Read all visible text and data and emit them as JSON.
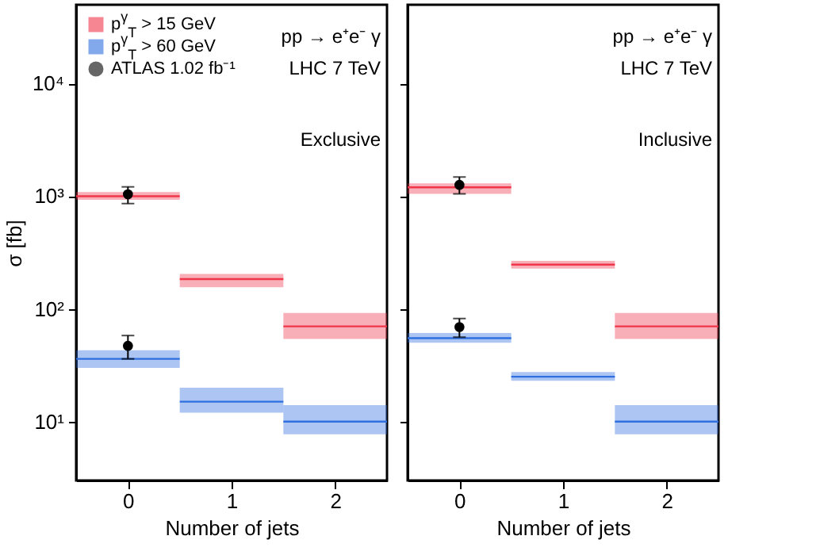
{
  "chart_data": [
    {
      "type": "line",
      "xlabel": "Number of jets",
      "ylabel": "σ [fb]",
      "xlim": [
        -0.5,
        2.5
      ],
      "xticks": [
        0,
        1,
        2
      ],
      "ylim": [
        3,
        50000
      ],
      "yticks": [
        {
          "value": 10,
          "label": "10¹"
        },
        {
          "value": 100,
          "label": "10²"
        },
        {
          "value": 1000,
          "label": "10³"
        },
        {
          "value": 10000,
          "label": "10⁴"
        }
      ],
      "log": "y",
      "legend": "top left",
      "annotations": [
        "pp → e⁺e⁻ γ",
        "LHC 7 TeV",
        "Exclusive"
      ],
      "series": [
        {
          "name": "p$^{γ}$$_{T}$ > 15 GeV",
          "color": "#f0364a",
          "x": [
            -0.5,
            0.5
          ],
          "values": [
            1000,
            1000
          ],
          "lower": [
            930,
            930
          ],
          "upper": [
            1090,
            1090
          ]
        },
        {
          "color": "#f0364a",
          "x": [
            0.5,
            1.5
          ],
          "values": [
            184,
            184
          ],
          "lower": [
            156,
            156
          ],
          "upper": [
            204,
            204
          ]
        },
        {
          "color": "#f0364a",
          "x": [
            1.5,
            2.5
          ],
          "values": [
            70,
            70
          ],
          "lower": [
            54,
            54
          ],
          "upper": [
            92,
            92
          ]
        },
        {
          "name": "p$^{γ}$$_{T}$ > 60 GeV",
          "color": "#2f6fe0",
          "x": [
            -0.5,
            0.5
          ],
          "values": [
            36,
            36
          ],
          "lower": [
            30,
            30
          ],
          "upper": [
            43,
            43
          ]
        },
        {
          "color": "#2f6fe0",
          "x": [
            0.5,
            1.5
          ],
          "values": [
            15,
            15
          ],
          "lower": [
            12,
            12
          ],
          "upper": [
            20,
            20
          ]
        },
        {
          "color": "#2f6fe0",
          "x": [
            1.5,
            2.5
          ],
          "values": [
            10,
            10
          ],
          "lower": [
            7.7,
            7.7
          ],
          "upper": [
            14,
            14
          ]
        },
        {
          "name": "ATLAS 1.02 fb⁻¹",
          "type": "scatter",
          "marker": "circle",
          "color": "#000000",
          "x": [
            0,
            0
          ],
          "values": [
            1040,
            47
          ],
          "errors": [
            [
              860,
              1210
            ],
            [
              36,
              58
            ]
          ]
        }
      ]
    },
    {
      "type": "line",
      "xlabel": "Number of jets",
      "xlim": [
        -0.5,
        2.5
      ],
      "xticks": [
        0,
        1,
        2
      ],
      "ylim": [
        3,
        50000
      ],
      "yticks": [
        10,
        100,
        1000,
        10000
      ],
      "log": "y",
      "tick_labels": "x",
      "legend": "top left",
      "annotations": [
        "pp → e⁺e⁻ γ",
        "LHC 7 TeV",
        "Inclusive"
      ],
      "series": [
        {
          "name": "p$^{γ}$$_{T}$ > 15 GeV",
          "color": "#f0364a",
          "x": [
            -0.5,
            0.5
          ],
          "values": [
            1200,
            1200
          ],
          "lower": [
            1050,
            1050
          ],
          "upper": [
            1300,
            1300
          ]
        },
        {
          "color": "#f0364a",
          "x": [
            0.5,
            1.5
          ],
          "values": [
            247,
            247
          ],
          "lower": [
            228,
            228
          ],
          "upper": [
            267,
            267
          ]
        },
        {
          "color": "#f0364a",
          "x": [
            1.5,
            2.5
          ],
          "values": [
            70,
            70
          ],
          "lower": [
            54,
            54
          ],
          "upper": [
            92,
            92
          ]
        },
        {
          "name": "p$^{γ}$$_{T}$ > 60 GeV",
          "color": "#2f6fe0",
          "x": [
            -0.5,
            0.5
          ],
          "values": [
            55,
            55
          ],
          "lower": [
            50,
            50
          ],
          "upper": [
            61,
            61
          ]
        },
        {
          "color": "#2f6fe0",
          "x": [
            0.5,
            1.5
          ],
          "values": [
            25,
            25
          ],
          "lower": [
            23,
            23
          ],
          "upper": [
            27.5,
            27.5
          ]
        },
        {
          "color": "#2f6fe0",
          "x": [
            1.5,
            2.5
          ],
          "values": [
            10,
            10
          ],
          "lower": [
            7.7,
            7.7
          ],
          "upper": [
            14,
            14
          ]
        },
        {
          "name": "ATLAS 1.02 fb⁻¹",
          "type": "scatter",
          "marker": "circle",
          "color": "#000000",
          "x": [
            0,
            0
          ],
          "values": [
            1260,
            69
          ],
          "errors": [
            [
              1050,
              1480
            ],
            [
              56,
              82
            ]
          ]
        }
      ]
    }
  ]
}
